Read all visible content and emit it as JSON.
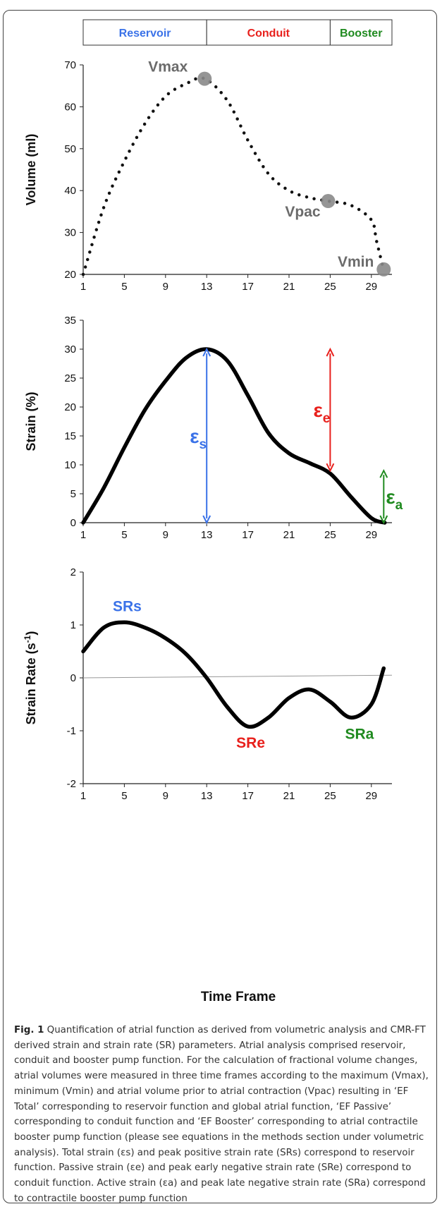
{
  "figure": {
    "caption_label": "Fig. 1",
    "caption_text": "Quantification of atrial function as derived from volumetric analysis and CMR-FT derived strain and strain rate (SR) parameters. Atrial analysis comprised reservoir, conduit and booster pump function. For the calculation of fractional volume changes, atrial volumes were measured in three time frames according to the maximum (Vmax), minimum (Vmin) and atrial volume prior to atrial contraction (Vpac) resulting in ‘EF Total’ corresponding to reservoir function and global atrial function, ‘EF Passive’ corresponding to conduit function and ‘EF Booster’ corresponding to atrial contractile booster pump function (please see equations in the methods section under volumetric analysis). Total strain (εs) and peak positive strain rate (SRs) correspond to reservoir function. Passive strain (εe) and peak early negative strain rate (SRe) correspond to conduit function. Active strain (εa) and peak late negative strain rate (SRa) correspond to contractile booster pump function",
    "phases": [
      {
        "label": "Reservoir",
        "color": "#3a72e8",
        "from": 1,
        "to": 13
      },
      {
        "label": "Conduit",
        "color": "#e8201c",
        "from": 13,
        "to": 25
      },
      {
        "label": "Booster",
        "color": "#1f8a1f",
        "from": 25,
        "to": 31
      }
    ],
    "xlabel": "Time Frame"
  },
  "chart_data": [
    {
      "type": "scatter",
      "ylabel": "Volume (ml)",
      "ylim": [
        20,
        70
      ],
      "yticks": [
        20,
        30,
        40,
        50,
        60,
        70
      ],
      "xlim": [
        1,
        31
      ],
      "xticks": [
        1,
        5,
        9,
        13,
        17,
        21,
        25,
        29
      ],
      "series": [
        {
          "x": [
            1,
            3,
            5,
            7,
            9,
            11,
            12.8,
            15,
            17,
            19,
            21,
            23,
            24.8,
            27,
            29,
            29.5,
            30.2
          ],
          "y": [
            20,
            36,
            47,
            56,
            62.5,
            65.5,
            66.7,
            61.5,
            52,
            44,
            40,
            38.3,
            37.5,
            36.5,
            33,
            28,
            21
          ]
        }
      ],
      "markers": [
        {
          "label": "Vmax",
          "x": 12.8,
          "y": 66.7
        },
        {
          "label": "Vpac",
          "x": 24.8,
          "y": 37.5
        },
        {
          "label": "Vmin",
          "x": 30.2,
          "y": 21.2
        }
      ]
    },
    {
      "type": "line",
      "ylabel": "Strain (%)",
      "ylim": [
        0,
        35
      ],
      "yticks": [
        0,
        5,
        10,
        15,
        20,
        25,
        30,
        35
      ],
      "xlim": [
        1,
        31
      ],
      "xticks": [
        1,
        5,
        9,
        13,
        17,
        21,
        25,
        29
      ],
      "series": [
        {
          "x": [
            1,
            3,
            5,
            7,
            9,
            11,
            13,
            15,
            17,
            19,
            21,
            23,
            25,
            27,
            29,
            30.3
          ],
          "y": [
            0,
            6,
            13,
            19.5,
            24.5,
            28.5,
            30,
            28,
            22,
            15.5,
            12,
            10.3,
            8.5,
            4.5,
            0.8,
            0
          ]
        }
      ],
      "annotations": [
        {
          "symbol": "ε",
          "sub": "s",
          "color": "#3a72e8",
          "x": 13,
          "y_from": 0,
          "y_to": 30
        },
        {
          "symbol": "ε",
          "sub": "e",
          "color": "#e8201c",
          "x": 25,
          "y_from": 9,
          "y_to": 30
        },
        {
          "symbol": "ε",
          "sub": "a",
          "color": "#1f8a1f",
          "x": 30.2,
          "y_from": 0,
          "y_to": 9
        }
      ]
    },
    {
      "type": "line",
      "ylabel": "Strain Rate (s-1)",
      "ylabel_main": "Strain Rate (s",
      "ylabel_sup": "-1",
      "ylim": [
        -2,
        2
      ],
      "yticks": [
        -2,
        -1,
        0,
        1,
        2
      ],
      "xlim": [
        1,
        31
      ],
      "xticks": [
        1,
        5,
        9,
        13,
        17,
        21,
        25,
        29
      ],
      "series": [
        {
          "x": [
            1,
            3,
            5,
            7,
            9,
            11,
            13,
            15,
            17,
            19,
            21,
            23,
            25,
            27,
            29,
            30.2
          ],
          "y": [
            0.5,
            0.95,
            1.05,
            0.95,
            0.75,
            0.45,
            0.0,
            -0.55,
            -0.92,
            -0.75,
            -0.38,
            -0.22,
            -0.45,
            -0.75,
            -0.5,
            0.18
          ]
        }
      ],
      "reference_line": {
        "y_start": 0,
        "y_end": 0.05
      },
      "annotations": [
        {
          "label": "SRs",
          "color": "#3a72e8",
          "x": 5,
          "y": 1.05
        },
        {
          "label": "SRe",
          "color": "#e8201c",
          "x": 17,
          "y": -0.92
        },
        {
          "label": "SRa",
          "color": "#1f8a1f",
          "x": 27.5,
          "y": -0.75
        }
      ]
    }
  ]
}
